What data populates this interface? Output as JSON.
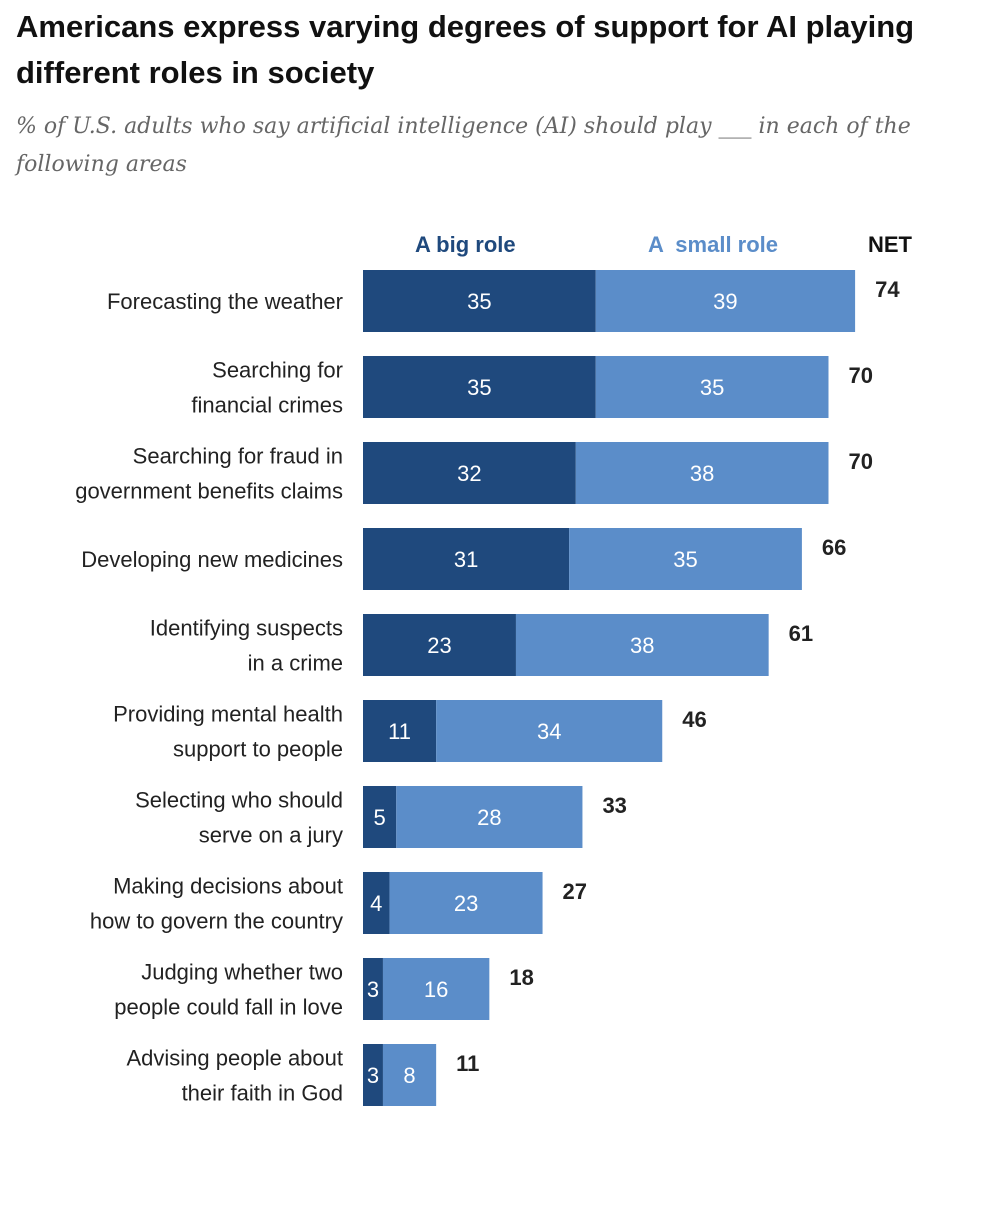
{
  "title": "Americans express varying degrees of support for AI playing different roles in society",
  "subtitle": "% of U.S. adults who say artificial intelligence (AI) should play ___ in each of the following areas",
  "chart_data": {
    "type": "bar",
    "orientation": "horizontal",
    "stacked": true,
    "title": "Americans express varying degrees of support for AI playing different roles in society",
    "subtitle": "% of U.S. adults who say artificial intelligence (AI) should play ___ in each of the following areas",
    "categories": [
      [
        "Forecasting the weather"
      ],
      [
        "Searching for",
        "financial crimes"
      ],
      [
        "Searching for fraud in",
        "government benefits claims"
      ],
      [
        "Developing new medicines"
      ],
      [
        "Identifying suspects",
        "in a crime"
      ],
      [
        "Providing mental health",
        "support to people"
      ],
      [
        "Selecting who should",
        "serve on a jury"
      ],
      [
        "Making decisions about",
        "how to govern the country"
      ],
      [
        "Judging whether two",
        "people could fall in love"
      ],
      [
        "Advising people about",
        "their faith in God"
      ]
    ],
    "series": [
      {
        "name": "A big role",
        "color": "#1f497d",
        "values": [
          35,
          35,
          32,
          31,
          23,
          11,
          5,
          4,
          3,
          3
        ]
      },
      {
        "name": "A  small role",
        "color": "#5b8dc9",
        "values": [
          39,
          35,
          38,
          35,
          38,
          34,
          28,
          23,
          16,
          8
        ]
      }
    ],
    "net_label": "NET",
    "net": [
      74,
      70,
      70,
      66,
      61,
      46,
      33,
      27,
      18,
      11
    ],
    "grid": false,
    "legend": "top"
  }
}
